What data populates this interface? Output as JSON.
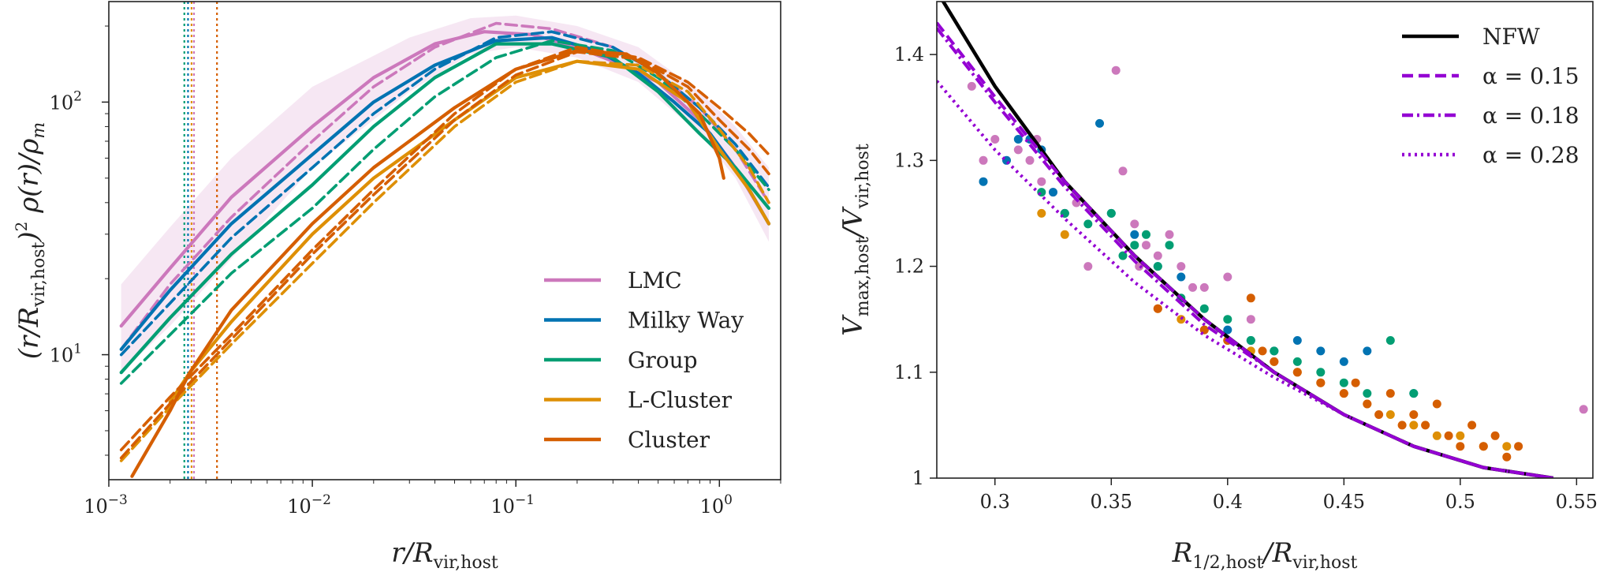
{
  "chart_data": [
    {
      "type": "line",
      "panel": "left",
      "xscale": "log",
      "yscale": "log",
      "xlim": [
        0.001,
        2.0
      ],
      "ylim": [
        3.2,
        250
      ],
      "xlabel": "r/R_vir,host",
      "ylabel": "(r/R_vir,host)^2 ρ(r)/ρ_m",
      "xticks": [
        {
          "value": 0.001,
          "base": "10",
          "exp": "−3"
        },
        {
          "value": 0.01,
          "base": "10",
          "exp": "−2"
        },
        {
          "value": 0.1,
          "base": "10",
          "exp": "−1"
        },
        {
          "value": 1,
          "base": "10",
          "exp": "0"
        }
      ],
      "yticks": [
        {
          "value": 10,
          "base": "10",
          "exp": "1"
        },
        {
          "value": 100,
          "base": "10",
          "exp": "2"
        }
      ],
      "legend_position": "lower-right",
      "vlines": [
        {
          "x": 0.00235,
          "color": "#029e73"
        },
        {
          "x": 0.00245,
          "color": "#0173b2"
        },
        {
          "x": 0.00255,
          "color": "#de8f05"
        },
        {
          "x": 0.00262,
          "color": "#cc78bc"
        },
        {
          "x": 0.0034,
          "color": "#d55e00"
        }
      ],
      "band": {
        "series": "LMC",
        "color": "#cc78bc",
        "x": [
          0.00115,
          0.002,
          0.004,
          0.01,
          0.03,
          0.06,
          0.1,
          0.2,
          0.4,
          0.8,
          1.2,
          1.75
        ],
        "lower": [
          8.5,
          13,
          24,
          55,
          110,
          155,
          165,
          150,
          120,
          75,
          50,
          28
        ],
        "upper": [
          19,
          32,
          60,
          115,
          180,
          215,
          220,
          200,
          165,
          110,
          80,
          55
        ]
      },
      "series": [
        {
          "name": "LMC",
          "color": "#cc78bc",
          "style": "solid",
          "x": [
            0.00115,
            0.002,
            0.004,
            0.01,
            0.02,
            0.04,
            0.07,
            0.12,
            0.2,
            0.3,
            0.5,
            0.8,
            1.2,
            1.75
          ],
          "y": [
            13,
            22,
            42,
            80,
            125,
            170,
            190,
            185,
            165,
            145,
            120,
            85,
            55,
            33
          ]
        },
        {
          "name": "LMC dashed",
          "color": "#cc78bc",
          "style": "dashed",
          "x": [
            0.00115,
            0.002,
            0.004,
            0.01,
            0.02,
            0.04,
            0.08,
            0.15,
            0.3,
            0.5,
            0.8,
            1.2,
            1.75
          ],
          "y": [
            10.5,
            19,
            35,
            70,
            115,
            165,
            205,
            195,
            165,
            130,
            95,
            65,
            40
          ]
        },
        {
          "name": "Milky Way",
          "color": "#0173b2",
          "style": "solid",
          "x": [
            0.00115,
            0.002,
            0.004,
            0.01,
            0.02,
            0.04,
            0.08,
            0.15,
            0.25,
            0.4,
            0.6,
            0.9,
            1.3,
            1.75
          ],
          "y": [
            10.5,
            18,
            33,
            62,
            100,
            140,
            175,
            180,
            160,
            130,
            100,
            75,
            50,
            33
          ]
        },
        {
          "name": "Milky Way dashed",
          "color": "#0173b2",
          "style": "dashed",
          "x": [
            0.00115,
            0.002,
            0.004,
            0.01,
            0.02,
            0.04,
            0.08,
            0.15,
            0.3,
            0.5,
            0.8,
            1.2,
            1.75
          ],
          "y": [
            10,
            16,
            29,
            55,
            90,
            135,
            180,
            190,
            165,
            130,
            95,
            68,
            46
          ]
        },
        {
          "name": "Group",
          "color": "#029e73",
          "style": "solid",
          "x": [
            0.00115,
            0.002,
            0.004,
            0.01,
            0.02,
            0.04,
            0.08,
            0.15,
            0.3,
            0.5,
            0.8,
            1.2,
            1.75
          ],
          "y": [
            8.5,
            14,
            25,
            47,
            80,
            125,
            170,
            170,
            150,
            110,
            75,
            55,
            38
          ]
        },
        {
          "name": "Group dashed",
          "color": "#029e73",
          "style": "dashed",
          "x": [
            0.00115,
            0.002,
            0.004,
            0.01,
            0.02,
            0.04,
            0.08,
            0.15,
            0.3,
            0.5,
            0.8,
            1.2,
            1.75
          ],
          "y": [
            7.7,
            12,
            21,
            38,
            65,
            105,
            150,
            175,
            160,
            125,
            90,
            65,
            45
          ]
        },
        {
          "name": "L-Cluster",
          "color": "#de8f05",
          "style": "solid",
          "x": [
            0.002,
            0.0025,
            0.004,
            0.01,
            0.02,
            0.05,
            0.1,
            0.2,
            0.4,
            0.7,
            1.0,
            1.4,
            1.75
          ],
          "y": [
            6.5,
            8.5,
            13.5,
            30,
            50,
            85,
            125,
            145,
            135,
            100,
            65,
            45,
            33
          ]
        },
        {
          "name": "L-Cluster dashed",
          "color": "#de8f05",
          "style": "dashed",
          "x": [
            0.00115,
            0.002,
            0.004,
            0.01,
            0.02,
            0.05,
            0.1,
            0.2,
            0.4,
            0.7,
            1.0,
            1.4,
            1.75
          ],
          "y": [
            3.8,
            6.2,
            11,
            23,
            40,
            80,
            120,
            145,
            140,
            110,
            78,
            55,
            40
          ]
        },
        {
          "name": "Cluster",
          "color": "#d55e00",
          "style": "solid",
          "x": [
            0.0013,
            0.002,
            0.0025,
            0.004,
            0.01,
            0.02,
            0.05,
            0.1,
            0.2,
            0.35,
            0.5,
            0.8,
            1.0,
            1.05
          ],
          "y": [
            3.3,
            6.0,
            8.5,
            15,
            33,
            55,
            95,
            135,
            160,
            155,
            130,
            90,
            60,
            50
          ]
        },
        {
          "name": "Cluster dashed A",
          "color": "#d55e00",
          "style": "dashed",
          "x": [
            0.00115,
            0.002,
            0.004,
            0.01,
            0.02,
            0.05,
            0.1,
            0.2,
            0.4,
            0.7,
            1.0,
            1.4,
            1.75
          ],
          "y": [
            4.2,
            6.8,
            12,
            26,
            45,
            90,
            135,
            165,
            150,
            120,
            95,
            75,
            62
          ]
        },
        {
          "name": "Cluster dashed B",
          "color": "#d55e00",
          "style": "dashed",
          "x": [
            0.00115,
            0.002,
            0.004,
            0.01,
            0.02,
            0.05,
            0.1,
            0.2,
            0.4,
            0.7,
            1.0,
            1.4,
            1.75
          ],
          "y": [
            3.9,
            6.4,
            11.5,
            25,
            43,
            85,
            128,
            158,
            148,
            115,
            85,
            65,
            52
          ]
        }
      ],
      "legend": [
        {
          "label": "LMC",
          "color": "#cc78bc"
        },
        {
          "label": "Milky Way",
          "color": "#0173b2"
        },
        {
          "label": "Group",
          "color": "#029e73"
        },
        {
          "label": "L-Cluster",
          "color": "#de8f05"
        },
        {
          "label": "Cluster",
          "color": "#d55e00"
        }
      ]
    },
    {
      "type": "scatter",
      "panel": "right",
      "xlim": [
        0.275,
        0.557
      ],
      "ylim": [
        1.0,
        1.45
      ],
      "xlabel": "R_1/2,host/R_vir,host",
      "ylabel": "V_max,host/V_vir,host",
      "xticks": [
        0.3,
        0.35,
        0.4,
        0.45,
        0.5,
        0.55
      ],
      "xtick_labels": [
        "0.3",
        "0.35",
        "0.4",
        "0.45",
        "0.5",
        "0.55"
      ],
      "yticks": [
        1.0,
        1.1,
        1.2,
        1.3,
        1.4
      ],
      "ytick_labels": [
        "1",
        "1.1",
        "1.2",
        "1.3",
        "1.4"
      ],
      "legend_position": "top-right",
      "curves": [
        {
          "label": "NFW",
          "color": "#000000",
          "style": "solid",
          "x": [
            0.275,
            0.3,
            0.33,
            0.36,
            0.39,
            0.42,
            0.45,
            0.48,
            0.51,
            0.54
          ],
          "y": [
            1.46,
            1.37,
            1.28,
            1.21,
            1.15,
            1.1,
            1.06,
            1.03,
            1.01,
            1.0
          ]
        },
        {
          "label": "α = 0.15",
          "color": "#9400d3",
          "style": "dashed",
          "x": [
            0.275,
            0.3,
            0.33,
            0.36,
            0.39,
            0.42,
            0.45,
            0.48,
            0.51,
            0.54
          ],
          "y": [
            1.43,
            1.36,
            1.28,
            1.21,
            1.15,
            1.1,
            1.06,
            1.03,
            1.01,
            1.0
          ]
        },
        {
          "label": "α = 0.18",
          "color": "#9400d3",
          "style": "dashdot",
          "x": [
            0.275,
            0.3,
            0.33,
            0.36,
            0.39,
            0.42,
            0.45,
            0.48,
            0.51,
            0.54
          ],
          "y": [
            1.425,
            1.355,
            1.275,
            1.205,
            1.145,
            1.1,
            1.06,
            1.03,
            1.01,
            1.0
          ]
        },
        {
          "label": "α = 0.28",
          "color": "#9400d3",
          "style": "dotted",
          "x": [
            0.275,
            0.3,
            0.33,
            0.36,
            0.39,
            0.42,
            0.45,
            0.48,
            0.51,
            0.54
          ],
          "y": [
            1.375,
            1.31,
            1.245,
            1.185,
            1.135,
            1.095,
            1.06,
            1.03,
            1.01,
            1.0
          ]
        }
      ],
      "points": [
        {
          "group": "LMC",
          "color": "#cc78bc",
          "x": [
            0.29,
            0.295,
            0.3,
            0.31,
            0.315,
            0.318,
            0.32,
            0.325,
            0.33,
            0.335,
            0.34,
            0.352,
            0.355,
            0.36,
            0.362,
            0.365,
            0.37,
            0.375,
            0.38,
            0.385,
            0.39,
            0.4,
            0.41,
            0.553
          ],
          "y": [
            1.37,
            1.3,
            1.32,
            1.31,
            1.3,
            1.32,
            1.28,
            1.27,
            1.25,
            1.26,
            1.2,
            1.385,
            1.29,
            1.24,
            1.2,
            1.22,
            1.21,
            1.23,
            1.2,
            1.18,
            1.18,
            1.19,
            1.15,
            1.065
          ]
        },
        {
          "group": "Milky Way",
          "color": "#0173b2",
          "x": [
            0.295,
            0.305,
            0.31,
            0.315,
            0.32,
            0.325,
            0.33,
            0.345,
            0.35,
            0.36,
            0.37,
            0.38,
            0.4,
            0.41,
            0.42,
            0.43,
            0.44,
            0.45,
            0.46,
            0.48
          ],
          "y": [
            1.28,
            1.3,
            1.32,
            1.32,
            1.31,
            1.27,
            1.25,
            1.335,
            1.25,
            1.23,
            1.2,
            1.19,
            1.14,
            1.13,
            1.12,
            1.13,
            1.12,
            1.11,
            1.12,
            1.08
          ]
        },
        {
          "group": "Group",
          "color": "#029e73",
          "x": [
            0.32,
            0.33,
            0.34,
            0.35,
            0.355,
            0.36,
            0.365,
            0.37,
            0.375,
            0.38,
            0.39,
            0.4,
            0.41,
            0.42,
            0.43,
            0.44,
            0.45,
            0.46,
            0.47,
            0.48
          ],
          "y": [
            1.27,
            1.25,
            1.24,
            1.25,
            1.21,
            1.22,
            1.23,
            1.2,
            1.22,
            1.17,
            1.16,
            1.15,
            1.13,
            1.12,
            1.11,
            1.1,
            1.09,
            1.08,
            1.13,
            1.08
          ]
        },
        {
          "group": "L-Cluster",
          "color": "#de8f05",
          "x": [
            0.32,
            0.33,
            0.37,
            0.38,
            0.39,
            0.4,
            0.41,
            0.42,
            0.43,
            0.44,
            0.45,
            0.46,
            0.47,
            0.48,
            0.49,
            0.5,
            0.51,
            0.52
          ],
          "y": [
            1.25,
            1.23,
            1.16,
            1.15,
            1.14,
            1.13,
            1.12,
            1.11,
            1.1,
            1.09,
            1.08,
            1.07,
            1.06,
            1.05,
            1.04,
            1.04,
            1.03,
            1.03
          ]
        },
        {
          "group": "Cluster",
          "color": "#d55e00",
          "x": [
            0.37,
            0.39,
            0.4,
            0.41,
            0.415,
            0.42,
            0.43,
            0.44,
            0.45,
            0.455,
            0.46,
            0.465,
            0.47,
            0.475,
            0.48,
            0.485,
            0.49,
            0.495,
            0.5,
            0.505,
            0.51,
            0.515,
            0.52,
            0.525
          ],
          "y": [
            1.16,
            1.14,
            1.13,
            1.17,
            1.12,
            1.11,
            1.1,
            1.09,
            1.08,
            1.09,
            1.07,
            1.06,
            1.08,
            1.05,
            1.06,
            1.05,
            1.07,
            1.04,
            1.03,
            1.05,
            1.03,
            1.04,
            1.02,
            1.03
          ]
        }
      ],
      "legend": [
        {
          "label": "NFW",
          "color": "#000000",
          "style": "solid"
        },
        {
          "label": "α = 0.15",
          "color": "#9400d3",
          "style": "dashed"
        },
        {
          "label": "α = 0.18",
          "color": "#9400d3",
          "style": "dashdot"
        },
        {
          "label": "α = 0.28",
          "color": "#9400d3",
          "style": "dotted"
        }
      ]
    }
  ]
}
